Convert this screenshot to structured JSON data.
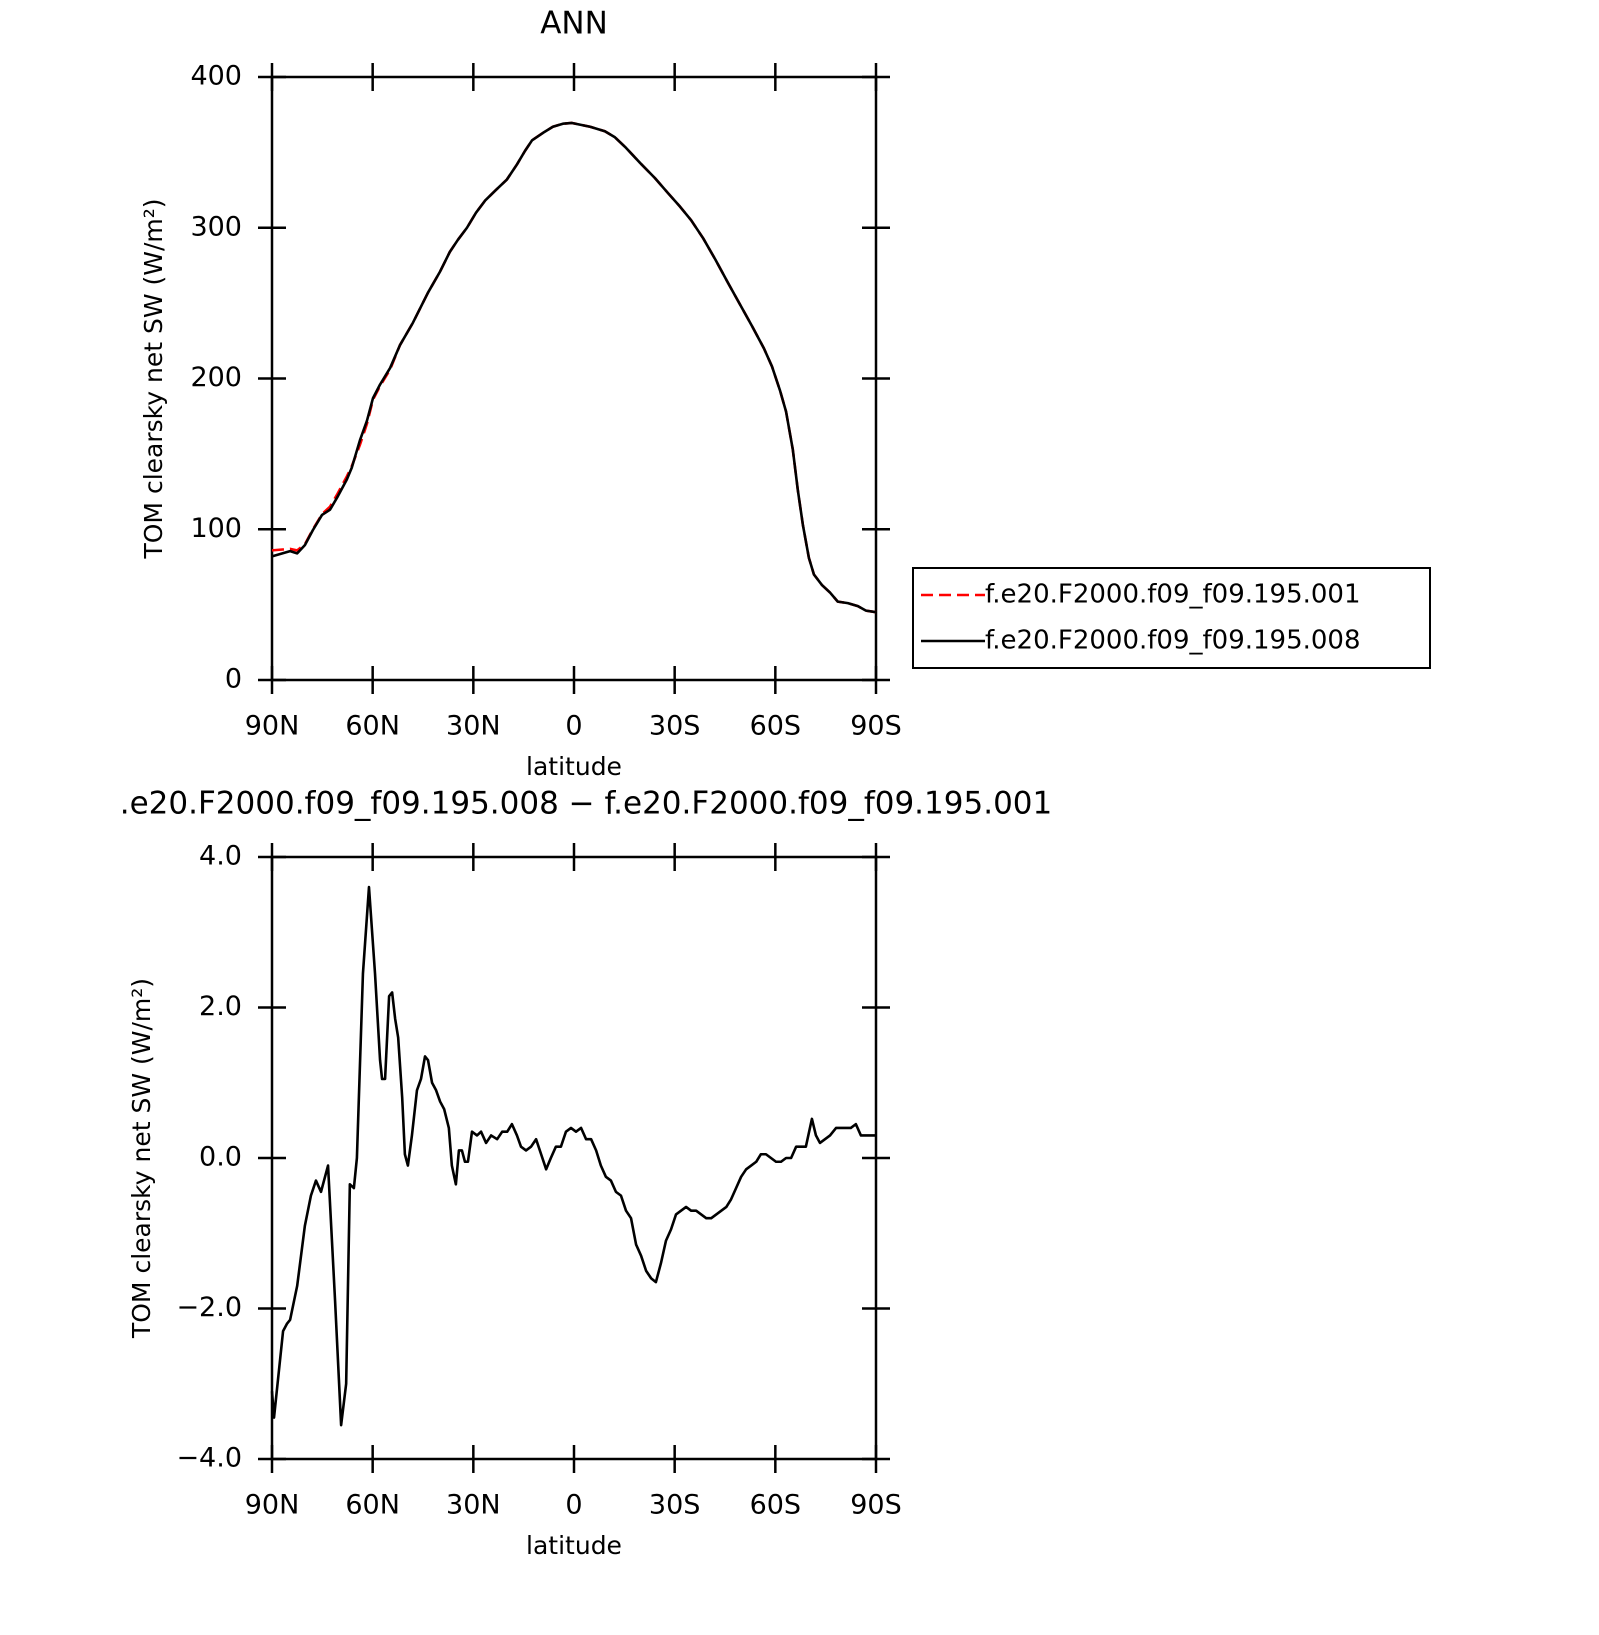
{
  "chart_data": [
    {
      "type": "line",
      "title": "ANN",
      "xlabel": "latitude",
      "ylabel": "TOM clearsky net SW (W/m²)",
      "xlim": [
        90,
        -90
      ],
      "xticks": [
        {
          "value": 90,
          "label": "90N"
        },
        {
          "value": 60,
          "label": "60N"
        },
        {
          "value": 30,
          "label": "30N"
        },
        0,
        {
          "value": -30,
          "label": "30S"
        },
        {
          "value": -60,
          "label": "60S"
        },
        {
          "value": -90,
          "label": "90S"
        }
      ],
      "ylim": [
        0,
        400
      ],
      "yticks": [
        0,
        100,
        200,
        300,
        400
      ],
      "legend": "right",
      "x": [
        90,
        84.6,
        82.5,
        80.2,
        77.8,
        75.1,
        72.7,
        70.6,
        67.7,
        66.2,
        63.8,
        61.7,
        59.9,
        57.8,
        54.8,
        51.9,
        48.0,
        43.5,
        39.9,
        37.0,
        34.6,
        31.9,
        29.2,
        26.5,
        23.3,
        20.0,
        17.0,
        14.6,
        12.5,
        9.2,
        6.3,
        3.3,
        0.6,
        -4.8,
        -9.2,
        -12.2,
        -15.5,
        -19.7,
        -24.1,
        -28.0,
        -31.6,
        -34.9,
        -38.5,
        -42.1,
        -46.0,
        -49.5,
        -53.0,
        -56.6,
        -59.0,
        -61.4,
        -63.2,
        -65.2,
        -66.7,
        -68.2,
        -70.0,
        -71.5,
        -73.9,
        -76.3,
        -78.6,
        -81.6,
        -84.6,
        -87.0,
        -90
      ],
      "series": [
        {
          "name": "f.e20.F2000.f09_f09.195.001",
          "color": "#ff0000",
          "linestyle": "dashed",
          "values": [
            86,
            87,
            86,
            90,
            100,
            110,
            115,
            123,
            135,
            142,
            156,
            170,
            186,
            195,
            206,
            222,
            237,
            257,
            271,
            284,
            292,
            300,
            310,
            318,
            325,
            332,
            342,
            351,
            358,
            363,
            367,
            369,
            369.5,
            367,
            364,
            360,
            353,
            343,
            333,
            323,
            314,
            305,
            293,
            279,
            263,
            249,
            235,
            220,
            208,
            192,
            178,
            153,
            126,
            103,
            81,
            70,
            63,
            58,
            52,
            51,
            49,
            46,
            45
          ]
        },
        {
          "name": "f.e20.F2000.f09_f09.195.008",
          "color": "#000000",
          "linestyle": "solid",
          "values": [
            82,
            85.5,
            84,
            89.5,
            99.5,
            109.5,
            113,
            121,
            133,
            141,
            159,
            172,
            187,
            196,
            207,
            222,
            237,
            257,
            271,
            284,
            292,
            300,
            310,
            318,
            325,
            332,
            342,
            351,
            358,
            363,
            367,
            369,
            369.5,
            367,
            364,
            360,
            353,
            343,
            333,
            323,
            314,
            305,
            293,
            279,
            263,
            249,
            235,
            220,
            208,
            192,
            178,
            153,
            126,
            103,
            81,
            70,
            63,
            58,
            52,
            51,
            49,
            46,
            45
          ]
        }
      ]
    },
    {
      "type": "line",
      "title": ".e20.F2000.f09_f09.195.008 − f.e20.F2000.f09_f09.195.001",
      "xlabel": "latitude",
      "ylabel": "TOM clearsky net SW (W/m²)",
      "xlim": [
        90,
        -90
      ],
      "xticks": [
        {
          "value": 90,
          "label": "90N"
        },
        {
          "value": 60,
          "label": "60N"
        },
        {
          "value": 30,
          "label": "30N"
        },
        0,
        {
          "value": -30,
          "label": "30S"
        },
        {
          "value": -60,
          "label": "60S"
        },
        {
          "value": -90,
          "label": "90S"
        }
      ],
      "ylim": [
        -4,
        4
      ],
      "yticks": [
        {
          "value": -4,
          "label": "−4.0"
        },
        {
          "value": -2,
          "label": "−2.0"
        },
        {
          "value": 0,
          "label": "0.0"
        },
        {
          "value": 2,
          "label": "2.0"
        },
        {
          "value": 4,
          "label": "4.0"
        }
      ],
      "color": "#000000",
      "x": [
        90,
        89.4,
        86.7,
        85.5,
        84.6,
        82.5,
        80.2,
        78.4,
        76.9,
        75.4,
        73.3,
        71.2,
        69.4,
        67.9,
        66.8,
        65.6,
        64.7,
        62.9,
        61.1,
        59.3,
        57.8,
        57.2,
        56.3,
        55.1,
        54.2,
        53.3,
        52.4,
        51.2,
        50.4,
        49.5,
        48.3,
        46.8,
        45.6,
        44.4,
        43.5,
        42.3,
        41.1,
        39.9,
        38.7,
        37.3,
        36.4,
        35.2,
        34.3,
        33.4,
        32.5,
        31.6,
        30.4,
        28.9,
        27.7,
        26.2,
        24.7,
        22.9,
        21.4,
        19.9,
        18.5,
        17.0,
        15.8,
        14.3,
        12.8,
        11.3,
        9.8,
        8.3,
        6.9,
        5.4,
        3.9,
        2.4,
        0.9,
        -0.6,
        -2.1,
        -3.6,
        -5.1,
        -6.6,
        -8.0,
        -9.5,
        -11.0,
        -12.5,
        -14.0,
        -15.5,
        -17.0,
        -18.5,
        -20.0,
        -21.5,
        -23.0,
        -24.4,
        -25.9,
        -27.4,
        -28.9,
        -30.4,
        -31.9,
        -33.4,
        -34.9,
        -36.4,
        -37.9,
        -39.4,
        -40.9,
        -42.4,
        -43.9,
        -45.4,
        -46.8,
        -48.3,
        -49.8,
        -51.3,
        -52.8,
        -54.3,
        -55.7,
        -57.2,
        -58.7,
        -60.2,
        -61.7,
        -63.2,
        -64.7,
        -66.2,
        -67.6,
        -69.1,
        -70.9,
        -72.1,
        -73.3,
        -74.8,
        -76.3,
        -78.1,
        -79.6,
        -81.1,
        -82.5,
        -84.0,
        -85.5,
        -87.0,
        -90.0
      ],
      "values": [
        -3.1,
        -3.45,
        -2.3,
        -2.2,
        -2.15,
        -1.7,
        -0.9,
        -0.5,
        -0.3,
        -0.45,
        -0.1,
        -1.9,
        -3.55,
        -3.0,
        -0.35,
        -0.4,
        0.0,
        2.45,
        3.6,
        2.45,
        1.3,
        1.05,
        1.05,
        2.15,
        2.2,
        1.85,
        1.6,
        0.8,
        0.05,
        -0.1,
        0.3,
        0.9,
        1.05,
        1.35,
        1.3,
        1.0,
        0.9,
        0.75,
        0.65,
        0.4,
        -0.1,
        -0.35,
        0.1,
        0.1,
        -0.05,
        -0.05,
        0.35,
        0.3,
        0.35,
        0.2,
        0.3,
        0.25,
        0.35,
        0.35,
        0.45,
        0.3,
        0.15,
        0.1,
        0.15,
        0.25,
        0.05,
        -0.15,
        0.0,
        0.15,
        0.15,
        0.35,
        0.4,
        0.35,
        0.4,
        0.25,
        0.25,
        0.1,
        -0.1,
        -0.25,
        -0.3,
        -0.45,
        -0.5,
        -0.7,
        -0.8,
        -1.15,
        -1.3,
        -1.5,
        -1.6,
        -1.65,
        -1.4,
        -1.1,
        -0.95,
        -0.75,
        -0.7,
        -0.65,
        -0.7,
        -0.7,
        -0.75,
        -0.8,
        -0.8,
        -0.75,
        -0.7,
        -0.65,
        -0.55,
        -0.4,
        -0.25,
        -0.15,
        -0.1,
        -0.05,
        0.05,
        0.05,
        0.0,
        -0.05,
        -0.05,
        0.0,
        0.0,
        0.15,
        0.15,
        0.15,
        0.52,
        0.3,
        0.2,
        0.25,
        0.3,
        0.4,
        0.4,
        0.4,
        0.4,
        0.45,
        0.3,
        0.3,
        0.3
      ]
    }
  ]
}
